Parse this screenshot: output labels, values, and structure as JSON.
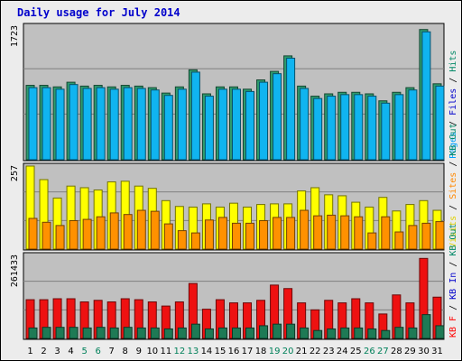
{
  "title": "Daily usage for July 2014",
  "chart_data": {
    "type": "bar",
    "title": "Daily usage for July 2014",
    "days": [
      1,
      2,
      3,
      4,
      5,
      6,
      7,
      8,
      9,
      10,
      11,
      12,
      13,
      14,
      15,
      16,
      17,
      18,
      19,
      20,
      21,
      22,
      23,
      24,
      25,
      26,
      27,
      28,
      29,
      30,
      31
    ],
    "weekend_days": [
      5,
      6,
      12,
      13,
      19,
      20,
      26,
      27
    ],
    "panels": [
      {
        "ymax_label": "1723",
        "ymax": 1723,
        "legend": [
          "Pages",
          "/",
          "Files",
          "/",
          "Hits"
        ],
        "legend_colors": [
          "#00a0ff",
          "#000000",
          "#0000cc",
          "#000000",
          "#008866"
        ],
        "series": [
          {
            "name": "Hits",
            "color": "#2e9c6e",
            "values": [
              960,
              960,
              940,
              1000,
              950,
              960,
              940,
              960,
              950,
              930,
              860,
              940,
              1160,
              850,
              940,
              940,
              910,
              1030,
              1140,
              1340,
              950,
              820,
              850,
              870,
              870,
              850,
              760,
              870,
              930,
              1680,
              980
            ]
          },
          {
            "name": "Files",
            "color": "#10b4f0",
            "values": [
              930,
              930,
              910,
              970,
              920,
              930,
              910,
              930,
              920,
              900,
              830,
              910,
              1130,
              820,
              910,
              910,
              880,
              1000,
              1110,
              1310,
              920,
              790,
              820,
              840,
              840,
              820,
              730,
              840,
              900,
              1650,
              950
            ]
          }
        ]
      },
      {
        "ymax_label": "257",
        "ymax": 257,
        "legend": [
          "Visits",
          "/",
          "Sites",
          "/",
          "KB Out"
        ],
        "legend_colors": [
          "#e0d000",
          "#000000",
          "#ff8800",
          "#000000",
          "#008866"
        ],
        "series": [
          {
            "name": "Visits",
            "color": "#ffff00",
            "values": [
              257,
              215,
              158,
              195,
              190,
              183,
              208,
              210,
              195,
              188,
              150,
              132,
              130,
              140,
              130,
              142,
              130,
              138,
              140,
              140,
              180,
              190,
              168,
              165,
              145,
              130,
              160,
              118,
              138,
              150,
              120
            ]
          },
          {
            "name": "Sites",
            "color": "#ff9100",
            "values": [
              95,
              83,
              73,
              88,
              92,
              100,
              112,
              107,
              120,
              117,
              78,
              57,
              50,
              90,
              98,
              80,
              80,
              88,
              98,
              98,
              120,
              103,
              105,
              103,
              100,
              50,
              100,
              53,
              73,
              80,
              85
            ]
          }
        ]
      },
      {
        "ymax_label": "261433",
        "ymax": 261433,
        "legend": [
          "KB F",
          "/",
          "KB In",
          "/",
          "KB Out"
        ],
        "legend_colors": [
          "#ff0000",
          "#000000",
          "#0000cc",
          "#000000",
          "#008866"
        ],
        "series": [
          {
            "name": "KB F",
            "color": "#ee1111",
            "values": [
              122000,
              122000,
              125000,
              125000,
              115000,
              120000,
              115000,
              125000,
              122000,
              115000,
              102000,
              115000,
              173000,
              92000,
              122000,
              112000,
              112000,
              120000,
              168000,
              157000,
              112000,
              90000,
              120000,
              112000,
              125000,
              112000,
              77000,
              137000,
              112000,
              252000,
              130000
            ]
          },
          {
            "name": "KB Out",
            "color": "#1e7a55",
            "values": [
              33000,
              35000,
              35000,
              35000,
              33000,
              35000,
              33000,
              35000,
              33000,
              33000,
              30000,
              33000,
              45000,
              30000,
              33000,
              33000,
              33000,
              40000,
              45000,
              45000,
              33000,
              25000,
              30000,
              33000,
              33000,
              30000,
              25000,
              35000,
              33000,
              75000,
              40000
            ]
          }
        ]
      }
    ]
  }
}
